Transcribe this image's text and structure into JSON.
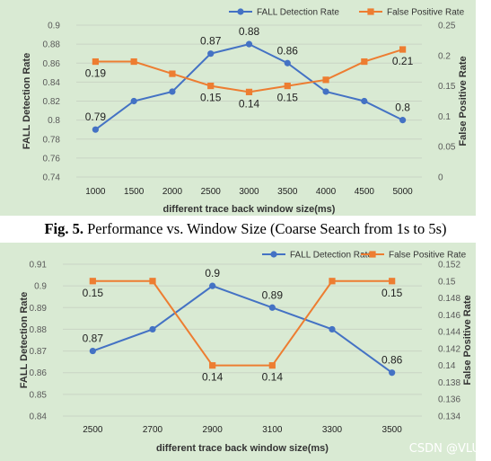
{
  "caption": {
    "label": "Fig. 5.",
    "text": " Performance vs. Window Size (Coarse Search from 1s to 5s)"
  },
  "watermark": "CSDN @VLU",
  "colors": {
    "background": "#d9ead3",
    "detection": "#4472c4",
    "false_positive": "#ed7d31",
    "grid": "#c9d4c4",
    "axis_text": "#595959"
  },
  "chart_data": [
    {
      "type": "line",
      "xlabel": "different trace back window size(ms)",
      "ylabel_left": "FALL Detection Rate",
      "ylabel_right": "False Positive Rate",
      "x": [
        1000,
        1500,
        2000,
        2500,
        3000,
        3500,
        4000,
        4500,
        5000
      ],
      "x_ticks": [
        "1000",
        "1500",
        "2000",
        "2500",
        "3000",
        "3500",
        "4000",
        "4500",
        "5000"
      ],
      "y_left_lim": [
        0.74,
        0.9
      ],
      "y_left_ticks": [
        "0.74",
        "0.76",
        "0.78",
        "0.8",
        "0.82",
        "0.84",
        "0.86",
        "0.88",
        "0.9"
      ],
      "y_right_lim": [
        0,
        0.25
      ],
      "y_right_ticks": [
        "0",
        "0.05",
        "0.1",
        "0.15",
        "0.2",
        "0.25"
      ],
      "legend_position": "top-right",
      "series": [
        {
          "name": "FALL Detection Rate",
          "axis": "left",
          "marker": "circle",
          "values": [
            0.79,
            0.82,
            0.83,
            0.87,
            0.88,
            0.86,
            0.83,
            0.82,
            0.8
          ],
          "labels": [
            "0.79",
            "",
            "",
            "0.87",
            "0.88",
            "0.86",
            "",
            "",
            "0.8"
          ]
        },
        {
          "name": "False Positive Rate",
          "axis": "right",
          "marker": "square",
          "values": [
            0.19,
            0.19,
            0.17,
            0.15,
            0.14,
            0.15,
            0.16,
            0.19,
            0.21
          ],
          "labels": [
            "0.19",
            "",
            "",
            "0.15",
            "0.14",
            "0.15",
            "",
            "",
            "0.21"
          ]
        }
      ]
    },
    {
      "type": "line",
      "xlabel": "different trace back window size(ms)",
      "ylabel_left": "FALL Detection Rate",
      "ylabel_right": "False Positive Rate",
      "x": [
        2500,
        2700,
        2900,
        3100,
        3300,
        3500
      ],
      "x_ticks": [
        "2500",
        "2700",
        "2900",
        "3100",
        "3300",
        "3500"
      ],
      "y_left_lim": [
        0.84,
        0.91
      ],
      "y_left_ticks": [
        "0.84",
        "0.85",
        "0.86",
        "0.87",
        "0.88",
        "0.89",
        "0.9",
        "0.91"
      ],
      "y_right_lim": [
        0.134,
        0.152
      ],
      "y_right_ticks": [
        "0.134",
        "0.136",
        "0.138",
        "0.14",
        "0.142",
        "0.144",
        "0.146",
        "0.148",
        "0.15",
        "0.152"
      ],
      "legend_position": "top-right",
      "series": [
        {
          "name": "FALL Detection Rate",
          "axis": "left",
          "marker": "circle",
          "values": [
            0.87,
            0.88,
            0.9,
            0.89,
            0.88,
            0.86
          ],
          "labels": [
            "0.87",
            "",
            "0.9",
            "0.89",
            "",
            "0.86"
          ]
        },
        {
          "name": "False Positive Rate",
          "axis": "right",
          "marker": "square",
          "values": [
            0.15,
            0.15,
            0.14,
            0.14,
            0.15,
            0.15
          ],
          "labels": [
            "0.15",
            "",
            "0.14",
            "0.14",
            "",
            "0.15"
          ]
        }
      ]
    }
  ]
}
